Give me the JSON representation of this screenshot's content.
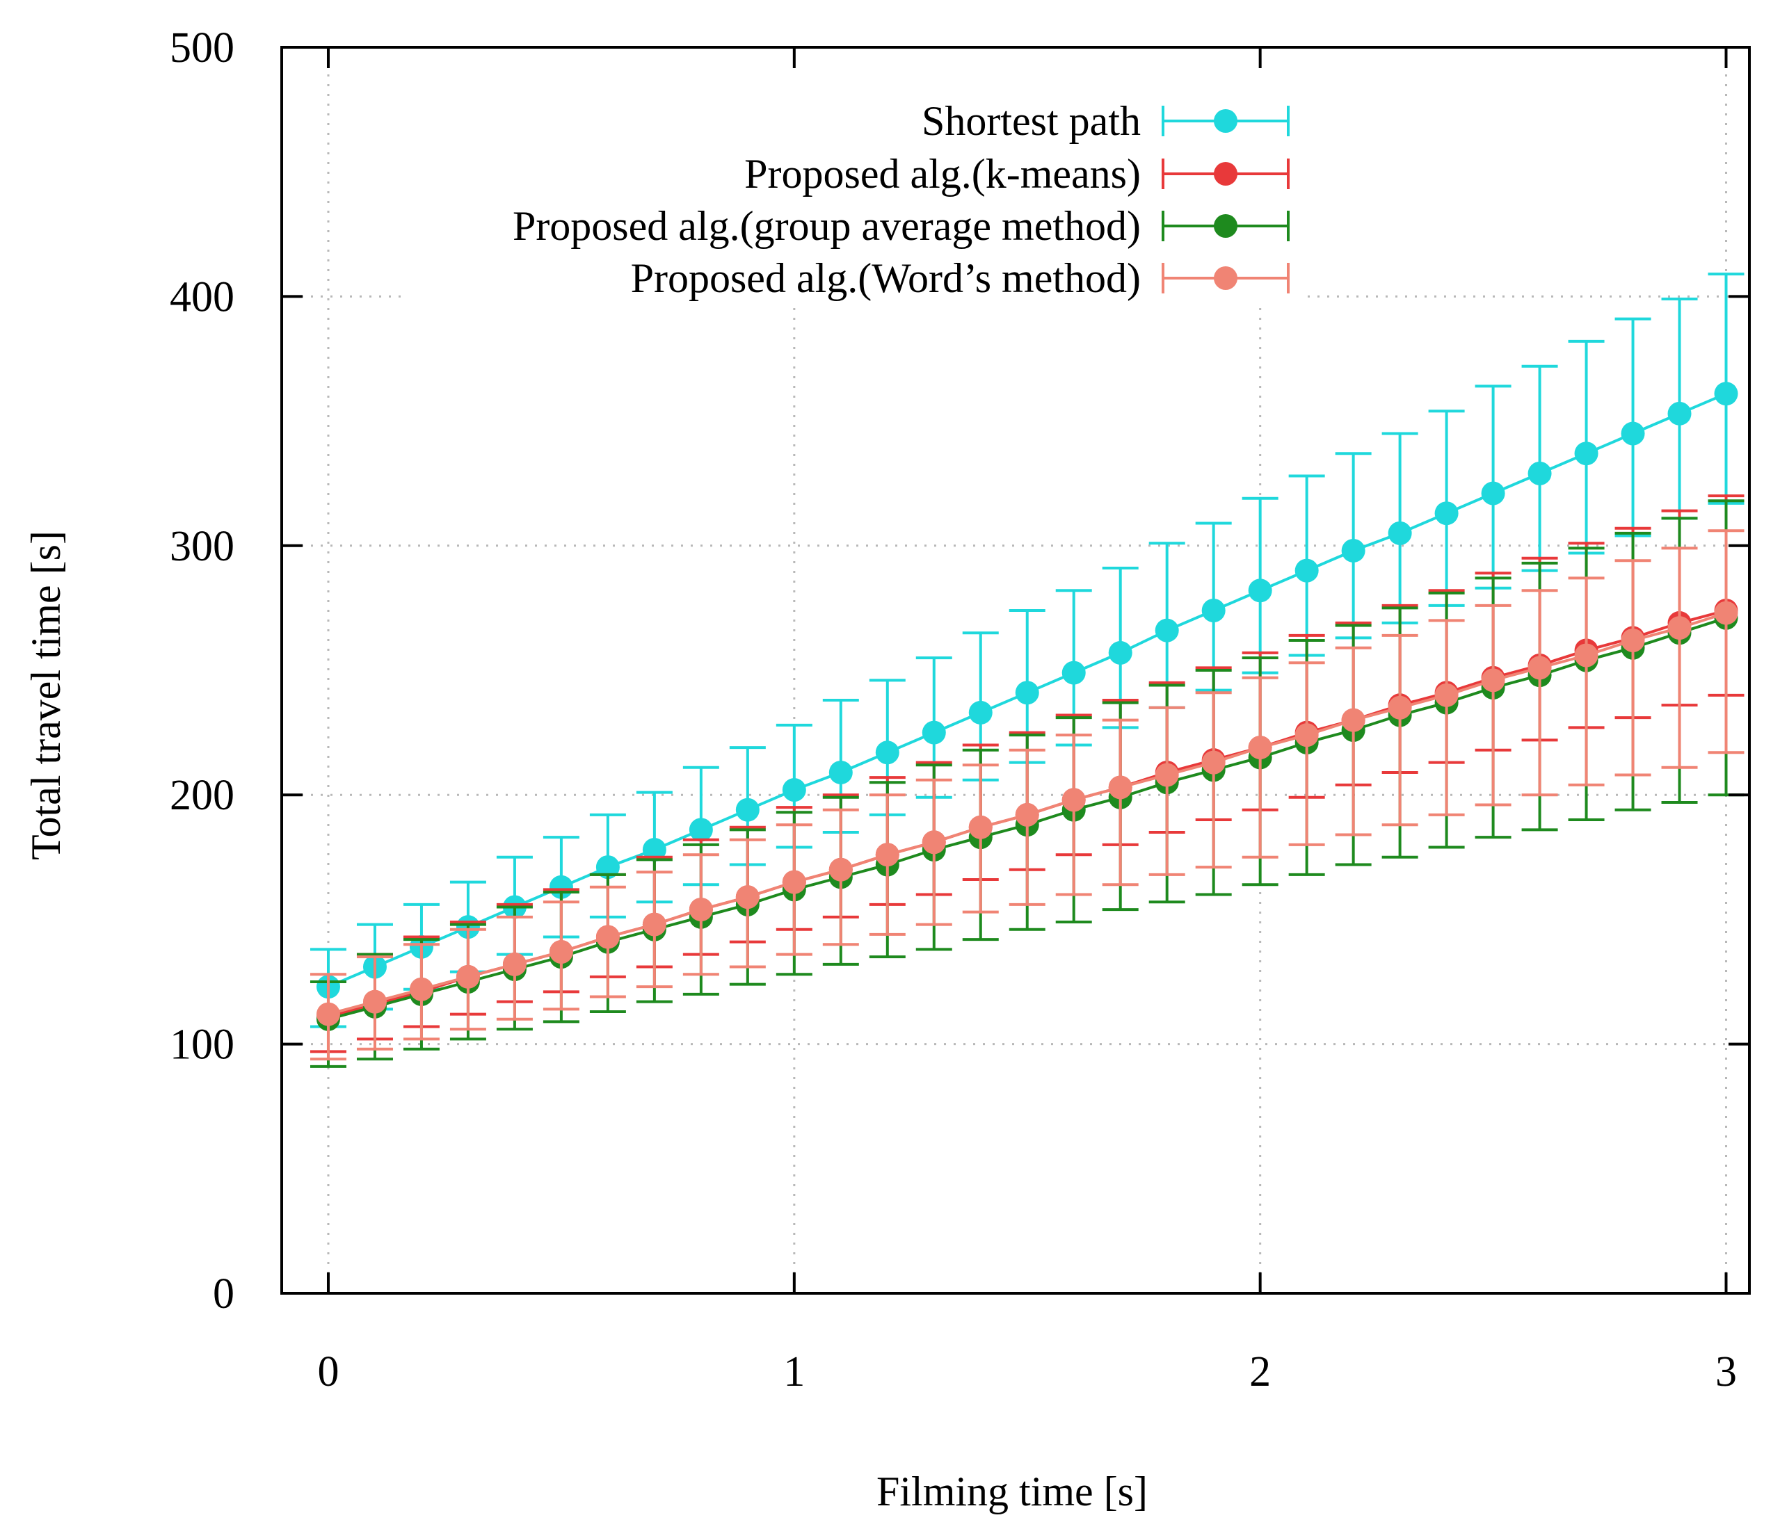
{
  "chart_data": {
    "type": "line",
    "title": "",
    "xlabel": "Filming time [s]",
    "ylabel": "Total travel time [s]",
    "xlim": [
      -0.1,
      3.05
    ],
    "ylim": [
      0,
      500
    ],
    "xticks": [
      0,
      1,
      2,
      3
    ],
    "yticks": [
      0,
      100,
      200,
      300,
      400,
      500
    ],
    "grid": true,
    "legend_position": "top-center",
    "x": [
      0,
      0.1,
      0.2,
      0.3,
      0.4,
      0.5,
      0.6,
      0.7,
      0.8,
      0.9,
      1.0,
      1.1,
      1.2,
      1.3,
      1.4,
      1.5,
      1.6,
      1.7,
      1.8,
      1.9,
      2.0,
      2.1,
      2.2,
      2.3,
      2.4,
      2.5,
      2.6,
      2.7,
      2.8,
      2.9,
      3.0
    ],
    "series": [
      {
        "name": "Shortest path",
        "color": "#1fd8dc",
        "values": [
          123,
          131,
          139,
          147,
          155,
          163,
          171,
          178,
          186,
          194,
          202,
          209,
          217,
          225,
          233,
          241,
          249,
          257,
          266,
          274,
          282,
          290,
          298,
          305,
          313,
          321,
          329,
          337,
          345,
          353,
          361
        ],
        "err_lower": [
          16,
          17,
          17,
          18,
          19,
          20,
          20,
          21,
          22,
          22,
          23,
          24,
          25,
          26,
          27,
          28,
          29,
          30,
          31,
          32,
          33,
          34,
          35,
          36,
          37,
          38,
          39,
          40,
          41,
          42,
          44
        ],
        "err_upper": [
          15,
          17,
          17,
          18,
          20,
          20,
          21,
          23,
          25,
          25,
          26,
          29,
          29,
          30,
          32,
          33,
          33,
          34,
          35,
          35,
          37,
          38,
          39,
          40,
          41,
          43,
          43,
          45,
          46,
          46,
          48
        ]
      },
      {
        "name": "Proposed alg.(k-means)",
        "color": "#e8393a",
        "values": [
          111,
          116,
          121,
          127,
          132,
          137,
          143,
          148,
          154,
          159,
          165,
          170,
          176,
          181,
          187,
          192,
          198,
          203,
          209,
          214,
          219,
          225,
          230,
          236,
          241,
          247,
          252,
          258,
          263,
          269,
          274
        ],
        "err_lower": [
          14,
          14,
          14,
          15,
          15,
          16,
          16,
          17,
          18,
          18,
          19,
          19,
          20,
          21,
          21,
          22,
          22,
          23,
          24,
          24,
          25,
          26,
          26,
          27,
          28,
          29,
          30,
          31,
          32,
          33,
          34
        ],
        "err_upper": [
          14,
          20,
          22,
          22,
          24,
          25,
          25,
          27,
          28,
          28,
          30,
          30,
          31,
          32,
          33,
          33,
          34,
          35,
          36,
          37,
          38,
          39,
          39,
          40,
          41,
          42,
          43,
          43,
          44,
          45,
          46
        ]
      },
      {
        "name": "Proposed alg.(group average method)",
        "color": "#1e8a1e",
        "values": [
          110,
          115,
          120,
          125,
          130,
          135,
          141,
          146,
          151,
          156,
          162,
          167,
          172,
          178,
          183,
          188,
          194,
          199,
          205,
          210,
          215,
          221,
          226,
          232,
          237,
          243,
          248,
          254,
          259,
          265,
          271
        ],
        "err_lower": [
          19,
          21,
          22,
          23,
          24,
          26,
          28,
          29,
          31,
          32,
          34,
          35,
          37,
          40,
          41,
          42,
          45,
          45,
          48,
          50,
          51,
          53,
          54,
          57,
          58,
          60,
          62,
          64,
          65,
          68,
          71
        ],
        "err_upper": [
          15,
          21,
          22,
          23,
          25,
          26,
          27,
          28,
          29,
          30,
          31,
          32,
          33,
          34,
          35,
          36,
          37,
          38,
          39,
          40,
          40,
          41,
          42,
          43,
          44,
          44,
          45,
          45,
          46,
          46,
          47
        ]
      },
      {
        "name": "Proposed alg.(Word’s method)",
        "color": "#f08474",
        "values": [
          112,
          117,
          122,
          127,
          132,
          137,
          143,
          148,
          154,
          159,
          165,
          170,
          176,
          181,
          187,
          192,
          198,
          203,
          208,
          213,
          219,
          224,
          230,
          235,
          240,
          246,
          251,
          256,
          262,
          267,
          273
        ],
        "err_lower": [
          18,
          19,
          20,
          21,
          22,
          23,
          24,
          25,
          26,
          28,
          29,
          30,
          32,
          33,
          34,
          36,
          38,
          39,
          40,
          42,
          44,
          44,
          46,
          47,
          48,
          50,
          51,
          52,
          54,
          56,
          56
        ],
        "err_upper": [
          16,
          18,
          18,
          19,
          19,
          20,
          20,
          21,
          22,
          23,
          23,
          24,
          24,
          25,
          25,
          26,
          26,
          27,
          27,
          28,
          28,
          29,
          29,
          29,
          30,
          30,
          31,
          31,
          32,
          32,
          33
        ]
      }
    ]
  }
}
